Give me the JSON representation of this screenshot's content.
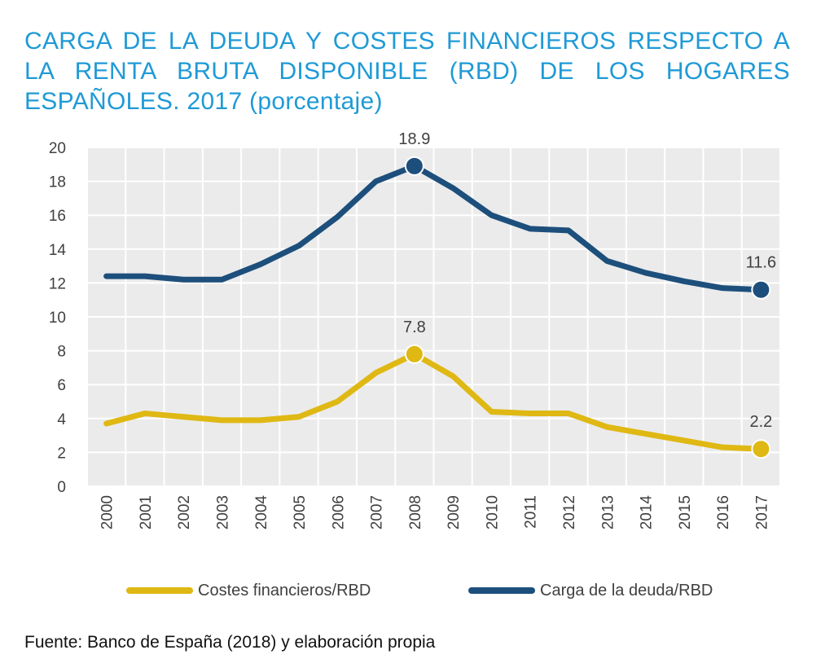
{
  "title": "CARGA DE LA DEUDA Y COSTES FINANCIEROS RESPECTO A LA RENTA BRUTA DISPONIBLE (RBD) DE LOS HOGARES ESPAÑOLES. 2017 (porcentaje)",
  "source": "Fuente: Banco de España (2018) y elaboración propia",
  "chart_data": {
    "type": "line",
    "title": "CARGA DE LA DEUDA Y COSTES FINANCIEROS RESPECTO A LA RENTA BRUTA DISPONIBLE (RBD) DE LOS HOGARES ESPAÑOLES. 2017 (porcentaje)",
    "xlabel": "",
    "ylabel": "",
    "ylim": [
      0,
      20
    ],
    "yticks": [
      "0",
      "2",
      "4",
      "6",
      "8",
      "10",
      "12",
      "14",
      "16",
      "18",
      "20"
    ],
    "grid": true,
    "legend_position": "bottom",
    "categories": [
      "2000",
      "2001",
      "2002",
      "2003",
      "2004",
      "2005",
      "2006",
      "2007",
      "2008",
      "2009",
      "2010",
      "2011",
      "2012",
      "2013",
      "2014",
      "2015",
      "2016",
      "2017"
    ],
    "series": [
      {
        "name": "Costes financieros/RBD",
        "color": "#dfb814",
        "values": [
          3.7,
          4.3,
          4.1,
          3.9,
          3.9,
          4.1,
          5.0,
          6.7,
          7.8,
          6.5,
          4.4,
          4.3,
          4.3,
          3.5,
          3.1,
          2.7,
          2.3,
          2.2
        ],
        "highlights": [
          {
            "category": "2008",
            "label": "7.8"
          },
          {
            "category": "2017",
            "label": "2.2"
          }
        ]
      },
      {
        "name": "Carga de la deuda/RBD",
        "color": "#1d4f7c",
        "values": [
          12.4,
          12.4,
          12.2,
          12.2,
          13.1,
          14.2,
          15.9,
          18.0,
          18.9,
          17.6,
          16.0,
          15.2,
          15.1,
          13.3,
          12.6,
          12.1,
          11.7,
          11.6
        ],
        "highlights": [
          {
            "category": "2008",
            "label": "18.9"
          },
          {
            "category": "2017",
            "label": "11.6"
          }
        ]
      }
    ]
  },
  "colors": {
    "title": "#1f9ad6",
    "plot_background": "#ebebeb",
    "gridline": "#ffffff",
    "text": "#404040"
  }
}
